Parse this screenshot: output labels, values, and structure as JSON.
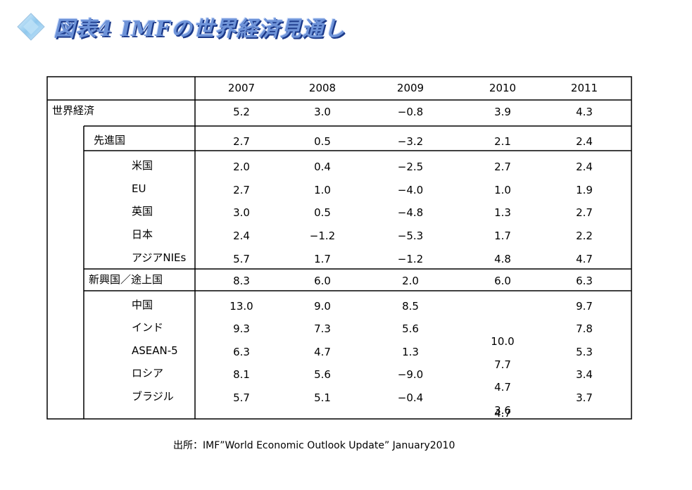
{
  "title": "図表4 IMFの世界経済見通し",
  "header_icon": "diamond-icon",
  "colors": {
    "title": "#6e93d8",
    "title_shadow": "#1c3a8a"
  },
  "table": {
    "years": [
      "2007",
      "2008",
      "2009",
      "2010",
      "2011"
    ],
    "world": {
      "label": "世界経済",
      "values": [
        "5.2",
        "3.0",
        "−0.8",
        "3.9",
        "4.3"
      ]
    },
    "advanced": {
      "label": "先進国",
      "values": [
        "2.7",
        "0.5",
        "−3.2",
        "2.1",
        "2.4"
      ]
    },
    "advanced_rows": [
      {
        "label": "米国",
        "values": [
          "2.0",
          "0.4",
          "−2.5",
          "2.7",
          "2.4"
        ]
      },
      {
        "label": "EU",
        "values": [
          "2.7",
          "1.0",
          "−4.0",
          "1.0",
          "1.9"
        ]
      },
      {
        "label": "英国",
        "values": [
          "3.0",
          "0.5",
          "−4.8",
          "1.3",
          "2.7"
        ]
      },
      {
        "label": "日本",
        "values": [
          "2.4",
          "−1.2",
          "−5.3",
          "1.7",
          "2.2"
        ]
      },
      {
        "label": "アジアNIEs",
        "values": [
          "5.7",
          "1.7",
          "−1.2",
          "4.8",
          "4.7"
        ]
      }
    ],
    "emerging": {
      "label": "新興国／途上国",
      "values": [
        "8.3",
        "6.0",
        "2.0",
        "6.0",
        "6.3"
      ]
    },
    "emerging_rows": [
      {
        "label": "中国",
        "values": [
          "13.0",
          "9.0",
          "8.5",
          "",
          "9.7"
        ]
      },
      {
        "label": "インド",
        "values": [
          "9.3",
          "7.3",
          "5.6",
          "10.0",
          "7.8"
        ]
      },
      {
        "label": "ASEAN-5",
        "values": [
          "6.3",
          "4.7",
          "1.3",
          "7.7",
          "5.3"
        ]
      },
      {
        "label": "ロシア",
        "values": [
          "8.1",
          "5.6",
          "−9.0",
          "4.7",
          "3.4"
        ]
      },
      {
        "label": "ブラジル",
        "values": [
          "5.7",
          "5.1",
          "−0.4",
          "3.6",
          "3.7"
        ]
      }
    ],
    "emerging_extra_2010": "4.7"
  },
  "source": "出所：IMF”World Economic Outlook Update” January2010"
}
